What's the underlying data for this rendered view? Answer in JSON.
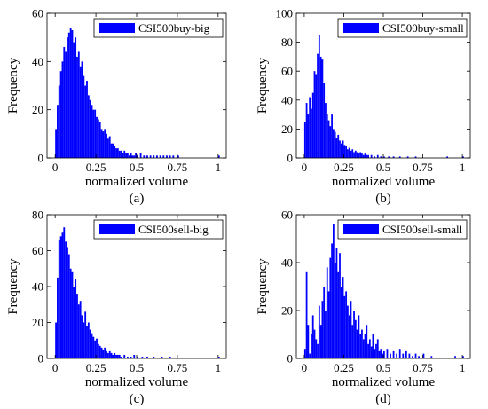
{
  "colors": {
    "bar": "#0000ff",
    "axis": "#000000",
    "background": "#ffffff"
  },
  "chart_data": [
    {
      "type": "bar",
      "panel_label": "(a)",
      "legend": {
        "label": "CSI500buy-big",
        "placement": "top-right"
      },
      "xlabel": "normalized volume",
      "ylabel": "Frequency",
      "xlim": [
        -0.05,
        1.05
      ],
      "ylim": [
        0,
        60
      ],
      "xticks": [
        0,
        0.25,
        0.5,
        0.75,
        1
      ],
      "xtick_labels": [
        "0",
        "0.25",
        "0.5",
        "0.75",
        "1"
      ],
      "yticks": [
        0,
        20,
        40,
        60
      ],
      "ytick_labels": [
        "0",
        "20",
        "40",
        "60"
      ],
      "bin_width": 0.01,
      "bin_starts": [
        0.0,
        0.01,
        0.02,
        0.03,
        0.04,
        0.05,
        0.06,
        0.07,
        0.08,
        0.09,
        0.1,
        0.11,
        0.12,
        0.13,
        0.14,
        0.15,
        0.16,
        0.17,
        0.18,
        0.19,
        0.2,
        0.21,
        0.22,
        0.23,
        0.24,
        0.25,
        0.26,
        0.27,
        0.28,
        0.29,
        0.3,
        0.31,
        0.32,
        0.33,
        0.34,
        0.35,
        0.36,
        0.37,
        0.38,
        0.39,
        0.4,
        0.41,
        0.42,
        0.43,
        0.44,
        0.45,
        0.46,
        0.47,
        0.48,
        0.49,
        0.5,
        0.52,
        0.54,
        0.56,
        0.58,
        0.6,
        0.62,
        0.64,
        0.66,
        0.68,
        0.7,
        0.72,
        0.75,
        1.0
      ],
      "frequencies": [
        12,
        22,
        30,
        36,
        40,
        46,
        44,
        50,
        52,
        54,
        53,
        48,
        50,
        42,
        44,
        38,
        40,
        34,
        30,
        32,
        26,
        24,
        22,
        20,
        20,
        17,
        16,
        15,
        12,
        11,
        12,
        10,
        8,
        9,
        6,
        6,
        5,
        4,
        4,
        3,
        3,
        2,
        3,
        2,
        2,
        1,
        2,
        1,
        1,
        2,
        1,
        2,
        1,
        1,
        1,
        1,
        1,
        1,
        1,
        1,
        1,
        1,
        1,
        1
      ]
    },
    {
      "type": "bar",
      "panel_label": "(b)",
      "legend": {
        "label": "CSI500buy-small",
        "placement": "top-right"
      },
      "xlabel": "normalized volume",
      "ylabel": "Frequency",
      "xlim": [
        -0.05,
        1.05
      ],
      "ylim": [
        0,
        100
      ],
      "xticks": [
        0,
        0.25,
        0.5,
        0.75,
        1
      ],
      "xtick_labels": [
        "0",
        "0.25",
        "0.5",
        "0.75",
        "1"
      ],
      "yticks": [
        0,
        20,
        40,
        60,
        80,
        100
      ],
      "ytick_labels": [
        "0",
        "20",
        "40",
        "60",
        "80",
        "100"
      ],
      "bin_width": 0.01,
      "bin_starts": [
        0.0,
        0.01,
        0.02,
        0.03,
        0.04,
        0.05,
        0.06,
        0.07,
        0.08,
        0.09,
        0.1,
        0.11,
        0.12,
        0.13,
        0.14,
        0.15,
        0.16,
        0.17,
        0.18,
        0.19,
        0.2,
        0.21,
        0.22,
        0.23,
        0.24,
        0.25,
        0.26,
        0.27,
        0.28,
        0.29,
        0.3,
        0.31,
        0.32,
        0.33,
        0.34,
        0.35,
        0.36,
        0.37,
        0.38,
        0.39,
        0.4,
        0.42,
        0.44,
        0.46,
        0.48,
        0.5,
        0.53,
        0.56,
        0.6,
        0.65,
        0.7,
        0.9,
        1.0
      ],
      "frequencies": [
        25,
        38,
        30,
        42,
        34,
        45,
        60,
        58,
        72,
        85,
        70,
        68,
        52,
        38,
        30,
        26,
        22,
        30,
        20,
        18,
        14,
        16,
        12,
        10,
        12,
        9,
        8,
        6,
        7,
        5,
        6,
        4,
        5,
        4,
        3,
        4,
        3,
        2,
        3,
        2,
        2,
        2,
        1,
        2,
        1,
        1,
        1,
        1,
        1,
        1,
        1,
        1,
        1
      ]
    },
    {
      "type": "bar",
      "panel_label": "(c)",
      "legend": {
        "label": "CSI500sell-big",
        "placement": "top-right"
      },
      "xlabel": "normalized volume",
      "ylabel": "Frequency",
      "xlim": [
        -0.05,
        1.05
      ],
      "ylim": [
        0,
        80
      ],
      "xticks": [
        0,
        0.25,
        0.5,
        0.75,
        1
      ],
      "xtick_labels": [
        "0",
        "0.25",
        "0.5",
        "0.75",
        "1"
      ],
      "yticks": [
        0,
        20,
        40,
        60,
        80
      ],
      "ytick_labels": [
        "0",
        "20",
        "40",
        "60",
        "80"
      ],
      "bin_width": 0.01,
      "bin_starts": [
        0.0,
        0.01,
        0.02,
        0.03,
        0.04,
        0.05,
        0.06,
        0.07,
        0.08,
        0.09,
        0.1,
        0.11,
        0.12,
        0.13,
        0.14,
        0.15,
        0.16,
        0.17,
        0.18,
        0.19,
        0.2,
        0.21,
        0.22,
        0.23,
        0.24,
        0.25,
        0.26,
        0.27,
        0.28,
        0.29,
        0.3,
        0.31,
        0.32,
        0.33,
        0.34,
        0.35,
        0.36,
        0.37,
        0.38,
        0.39,
        0.4,
        0.42,
        0.44,
        0.46,
        0.48,
        0.5,
        0.53,
        0.56,
        0.6,
        0.65,
        0.7,
        1.0
      ],
      "frequencies": [
        20,
        45,
        66,
        68,
        70,
        73,
        65,
        62,
        58,
        50,
        48,
        40,
        44,
        36,
        30,
        32,
        24,
        20,
        26,
        18,
        20,
        16,
        14,
        12,
        10,
        11,
        8,
        7,
        6,
        5,
        6,
        4,
        3,
        4,
        3,
        2,
        3,
        2,
        2,
        2,
        1,
        2,
        1,
        1,
        2,
        1,
        1,
        1,
        1,
        1,
        1,
        1
      ]
    },
    {
      "type": "bar",
      "panel_label": "(d)",
      "legend": {
        "label": "CSI500sell-small",
        "placement": "top-right"
      },
      "xlabel": "normalized volume",
      "ylabel": "Frequency",
      "xlim": [
        -0.05,
        1.05
      ],
      "ylim": [
        0,
        60
      ],
      "xticks": [
        0,
        0.25,
        0.5,
        0.75,
        1
      ],
      "xtick_labels": [
        "0",
        "0.25",
        "0.5",
        "0.75",
        "1"
      ],
      "yticks": [
        0,
        20,
        40,
        60
      ],
      "ytick_labels": [
        "0",
        "20",
        "40",
        "60"
      ],
      "bin_width": 0.01,
      "bin_starts": [
        0.0,
        0.01,
        0.02,
        0.03,
        0.04,
        0.05,
        0.06,
        0.07,
        0.08,
        0.09,
        0.1,
        0.11,
        0.12,
        0.13,
        0.14,
        0.15,
        0.16,
        0.17,
        0.18,
        0.19,
        0.2,
        0.21,
        0.22,
        0.23,
        0.24,
        0.25,
        0.26,
        0.27,
        0.28,
        0.29,
        0.3,
        0.31,
        0.32,
        0.33,
        0.34,
        0.35,
        0.36,
        0.37,
        0.38,
        0.39,
        0.4,
        0.41,
        0.42,
        0.43,
        0.44,
        0.45,
        0.46,
        0.47,
        0.48,
        0.49,
        0.5,
        0.52,
        0.54,
        0.56,
        0.58,
        0.6,
        0.62,
        0.64,
        0.66,
        0.68,
        0.7,
        0.72,
        0.75,
        0.8,
        0.95,
        1.0
      ],
      "frequencies": [
        4,
        36,
        14,
        2,
        10,
        18,
        12,
        8,
        6,
        22,
        14,
        24,
        30,
        20,
        38,
        28,
        42,
        48,
        56,
        40,
        46,
        36,
        44,
        30,
        34,
        26,
        28,
        22,
        18,
        24,
        14,
        20,
        16,
        12,
        18,
        10,
        12,
        8,
        10,
        14,
        6,
        8,
        5,
        10,
        4,
        6,
        8,
        3,
        4,
        2,
        3,
        4,
        2,
        3,
        2,
        4,
        2,
        3,
        2,
        1,
        2,
        1,
        2,
        1,
        1,
        1
      ]
    }
  ]
}
